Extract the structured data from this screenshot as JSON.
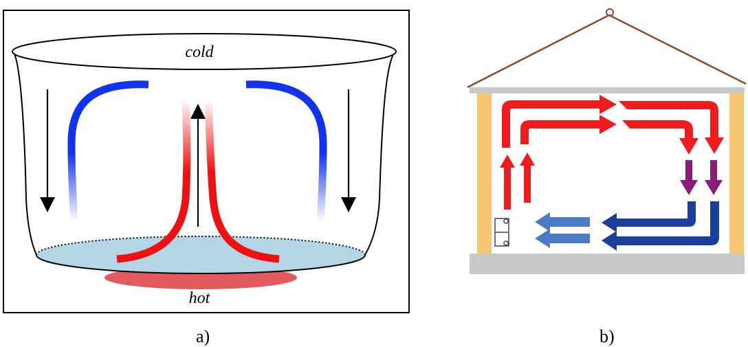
{
  "panel_a": {
    "top_label": "cold",
    "bottom_label": "hot",
    "caption": "a)",
    "colors": {
      "hot": "#ee1111",
      "cold": "#1133ee",
      "water": "#b3d6e6",
      "heat_source": "#e05055",
      "outline": "#000000"
    }
  },
  "panel_b": {
    "caption": "b)",
    "colors": {
      "hot_flow": "#ee1c1c",
      "cooling_flow": "#8b1d7a",
      "cold_flow": "#1a3f9a",
      "cold_flow_light": "#4a7bc4",
      "wall": "#f6c670",
      "ceiling_floor": "#c8c8c8",
      "roof": "#8a4b2e"
    }
  }
}
